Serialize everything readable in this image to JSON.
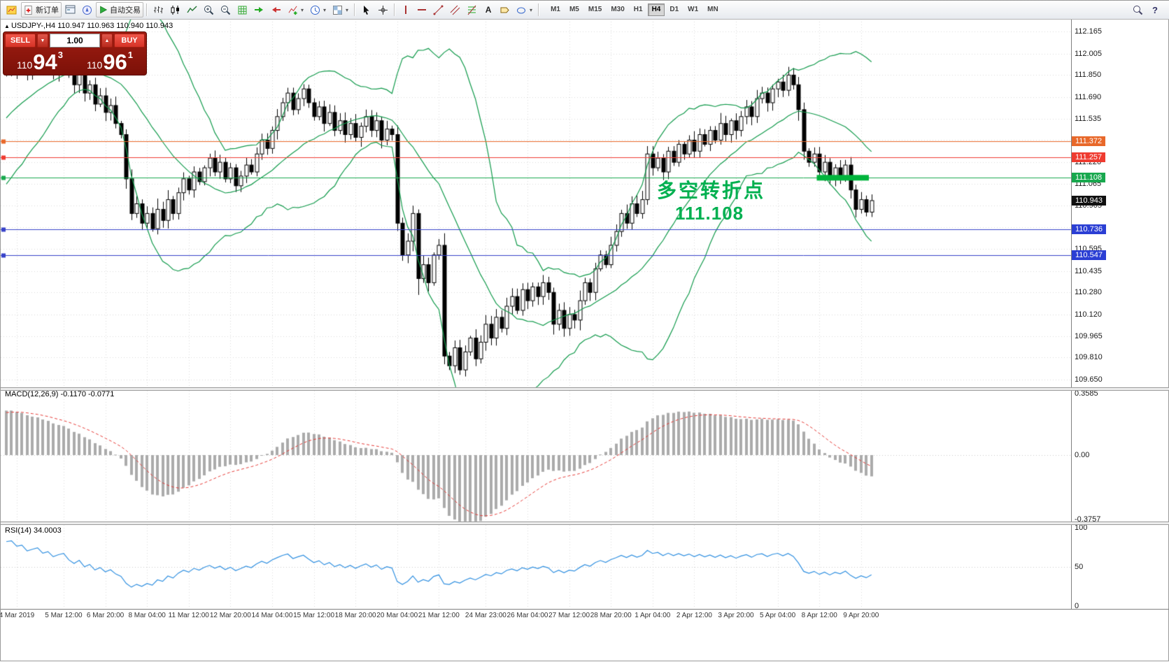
{
  "toolbar": {
    "new_order_label": "新订单",
    "autotrade_label": "自动交易",
    "timeframes": [
      "M1",
      "M5",
      "M15",
      "M30",
      "H1",
      "H4",
      "D1",
      "W1",
      "MN"
    ],
    "active_timeframe": "H4"
  },
  "header": {
    "icon": "▲",
    "title": "USDJPY-,H4",
    "ohlc": "110.947 110.963 110.940 110.943"
  },
  "trade_panel": {
    "sell_label": "SELL",
    "buy_label": "BUY",
    "volume": "1.00",
    "spin_down": "▼",
    "spin_up": "▲",
    "sell_price": {
      "base": "110",
      "big": "94",
      "sup": "3"
    },
    "buy_price": {
      "base": "110",
      "big": "96",
      "sup": "1"
    }
  },
  "annotation": {
    "line1": "多空转折点",
    "line2": "111.108",
    "color": "#00b050"
  },
  "price_axis": {
    "labels": [
      "112.165",
      "112.005",
      "111.850",
      "111.690",
      "111.535",
      "111.220",
      "111.065",
      "110.905",
      "110.595",
      "110.435",
      "110.280",
      "110.120",
      "109.965",
      "109.810",
      "109.650"
    ],
    "badges": [
      {
        "value": "111.372",
        "bg": "#e8682a"
      },
      {
        "value": "111.257",
        "bg": "#ef3b30"
      },
      {
        "value": "111.108",
        "bg": "#18a84e"
      },
      {
        "value": "110.943",
        "bg": "#101010"
      },
      {
        "value": "110.736",
        "bg": "#2b3fd4"
      },
      {
        "value": "110.547",
        "bg": "#2b3fd4"
      }
    ]
  },
  "macd": {
    "label": "MACD(12,26,9) -0.1170 -0.0771",
    "scale": [
      {
        "text": "0.3585",
        "value": 0.3585
      },
      {
        "text": "0.00",
        "value": 0
      },
      {
        "text": "-0.3757",
        "value": -0.3757
      }
    ]
  },
  "rsi": {
    "label": "RSI(14) 34.0003",
    "scale": [
      {
        "text": "100",
        "value": 100
      },
      {
        "text": "50",
        "value": 50
      },
      {
        "text": "0",
        "value": 0
      }
    ]
  },
  "time_axis": [
    {
      "bar": 2,
      "label": "4 Mar 2019"
    },
    {
      "bar": 11,
      "label": "5 Mar 12:00"
    },
    {
      "bar": 19,
      "label": "6 Mar 20:00"
    },
    {
      "bar": 27,
      "label": "8 Mar 04:00"
    },
    {
      "bar": 35,
      "label": "11 Mar 12:00"
    },
    {
      "bar": 43,
      "label": "12 Mar 20:00"
    },
    {
      "bar": 51,
      "label": "14 Mar 04:00"
    },
    {
      "bar": 59,
      "label": "15 Mar 12:00"
    },
    {
      "bar": 67,
      "label": "18 Mar 20:00"
    },
    {
      "bar": 75,
      "label": "20 Mar 04:00"
    },
    {
      "bar": 83,
      "label": "21 Mar 12:00"
    },
    {
      "bar": 92,
      "label": "24 Mar 23:00"
    },
    {
      "bar": 100,
      "label": "26 Mar 04:00"
    },
    {
      "bar": 108,
      "label": "27 Mar 12:00"
    },
    {
      "bar": 116,
      "label": "28 Mar 20:00"
    },
    {
      "bar": 124,
      "label": "1 Apr 04:00"
    },
    {
      "bar": 132,
      "label": "2 Apr 12:00"
    },
    {
      "bar": 140,
      "label": "3 Apr 20:00"
    },
    {
      "bar": 148,
      "label": "5 Apr 04:00"
    },
    {
      "bar": 156,
      "label": "8 Apr 12:00"
    },
    {
      "bar": 164,
      "label": "9 Apr 20:00"
    }
  ],
  "chart_data": {
    "type": "candlestick",
    "symbol": "USDJPY-",
    "timeframe": "H4",
    "ohlc_current": {
      "open": 110.947,
      "high": 110.963,
      "low": 110.94,
      "close": 110.943
    },
    "price_range": [
      109.65,
      112.165
    ],
    "grid_prices": [
      112.165,
      112.005,
      111.85,
      111.69,
      111.535,
      111.38,
      111.22,
      111.065,
      110.905,
      110.75,
      110.595,
      110.435,
      110.28,
      110.12,
      109.965,
      109.81,
      109.65
    ],
    "warmup": {
      "bars": 40,
      "start": 110.3,
      "end": 111.9
    },
    "closes": [
      111.9,
      111.95,
      111.88,
      111.93,
      111.85,
      111.91,
      111.97,
      111.89,
      111.94,
      111.86,
      111.92,
      111.96,
      111.85,
      111.78,
      111.86,
      111.72,
      111.78,
      111.64,
      111.7,
      111.58,
      111.63,
      111.5,
      111.42,
      111.1,
      110.85,
      110.92,
      110.78,
      110.85,
      110.74,
      110.88,
      110.8,
      110.95,
      110.85,
      111.0,
      111.1,
      111.02,
      111.15,
      111.08,
      111.18,
      111.25,
      111.15,
      111.22,
      111.1,
      111.18,
      111.05,
      111.12,
      111.2,
      111.15,
      111.28,
      111.38,
      111.32,
      111.45,
      111.55,
      111.65,
      111.72,
      111.6,
      111.68,
      111.75,
      111.65,
      111.55,
      111.62,
      111.5,
      111.58,
      111.45,
      111.52,
      111.42,
      111.5,
      111.4,
      111.48,
      111.55,
      111.45,
      111.52,
      111.38,
      111.46,
      111.42,
      110.78,
      110.55,
      110.65,
      110.85,
      110.38,
      110.48,
      110.35,
      110.55,
      110.62,
      109.82,
      109.75,
      109.88,
      109.72,
      109.85,
      109.95,
      109.8,
      109.92,
      110.05,
      109.95,
      110.1,
      110.02,
      110.18,
      110.25,
      110.15,
      110.3,
      110.22,
      110.32,
      110.25,
      110.35,
      110.28,
      110.05,
      110.15,
      110.02,
      110.12,
      110.08,
      110.22,
      110.35,
      110.28,
      110.45,
      110.55,
      110.48,
      110.62,
      110.72,
      110.85,
      110.78,
      110.92,
      110.85,
      110.95,
      111.28,
      111.18,
      111.25,
      111.15,
      111.3,
      111.22,
      111.35,
      111.28,
      111.38,
      111.3,
      111.42,
      111.35,
      111.45,
      111.38,
      111.5,
      111.42,
      111.52,
      111.45,
      111.55,
      111.62,
      111.55,
      111.68,
      111.72,
      111.65,
      111.75,
      111.8,
      111.74,
      111.85,
      111.78,
      111.6,
      111.3,
      111.22,
      111.28,
      111.15,
      111.22,
      111.1,
      111.18,
      111.12,
      111.2,
      111.02,
      110.88,
      110.95,
      110.86,
      110.943
    ],
    "indicators": {
      "bollinger": {
        "period": 20,
        "deviation": 2
      },
      "macd": {
        "fast": 12,
        "slow": 26,
        "signal": 9,
        "current": [
          -0.117,
          -0.0771
        ]
      },
      "rsi": {
        "period": 14,
        "current": 34.0003
      }
    },
    "hlines": [
      {
        "price": 111.372,
        "color": "#e8682a"
      },
      {
        "price": 111.257,
        "color": "#ef3b30"
      },
      {
        "price": 111.108,
        "color": "#18a84e"
      },
      {
        "price": 110.736,
        "color": "#3742c8"
      },
      {
        "price": 110.547,
        "color": "#3742c8"
      }
    ],
    "highlight": {
      "price": 111.108,
      "bar_start": 155.5,
      "bar_end": 165.5,
      "color": "#00b43c"
    },
    "colors": {
      "bull": "#ffffff",
      "bear": "#000000",
      "wick": "#000000",
      "bollinger": "#119a4b",
      "macd_hist": "#ababab",
      "macd_signal": "#e53935",
      "rsi_line": "#2f8fe0",
      "grid": "#d9d9d9"
    }
  }
}
